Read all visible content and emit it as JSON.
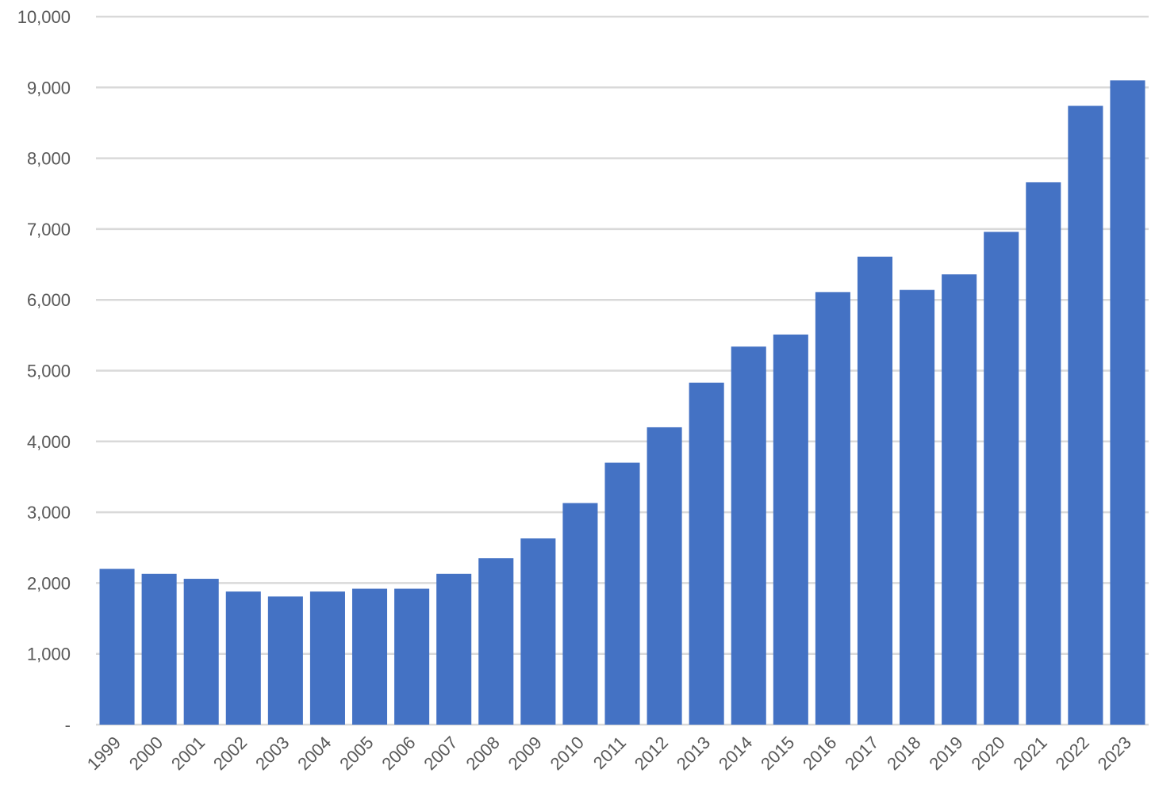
{
  "chart_data": {
    "type": "bar",
    "categories": [
      "1999",
      "2000",
      "2001",
      "2002",
      "2003",
      "2004",
      "2005",
      "2006",
      "2007",
      "2008",
      "2009",
      "2010",
      "2011",
      "2012",
      "2013",
      "2014",
      "2015",
      "2016",
      "2017",
      "2018",
      "2019",
      "2020",
      "2021",
      "2022",
      "2023"
    ],
    "values": [
      2200,
      2130,
      2060,
      1880,
      1810,
      1880,
      1920,
      1920,
      2130,
      2350,
      2630,
      3130,
      3700,
      4200,
      4830,
      5340,
      5510,
      6110,
      6610,
      6140,
      6360,
      6960,
      7660,
      8740,
      9100
    ],
    "ylim": [
      0,
      10000
    ],
    "yticks": [
      0,
      1000,
      2000,
      3000,
      4000,
      5000,
      6000,
      7000,
      8000,
      9000,
      10000
    ],
    "ytick_labels": [
      "-",
      "1,000",
      "2,000",
      "3,000",
      "4,000",
      "5,000",
      "6,000",
      "7,000",
      "8,000",
      "9,000",
      "10,000"
    ],
    "title": "",
    "xlabel": "",
    "ylabel": "",
    "grid": true,
    "legend": "none",
    "colors": {
      "bar": "#4472c4",
      "grid": "#d9d9d9",
      "text": "#595959"
    }
  }
}
